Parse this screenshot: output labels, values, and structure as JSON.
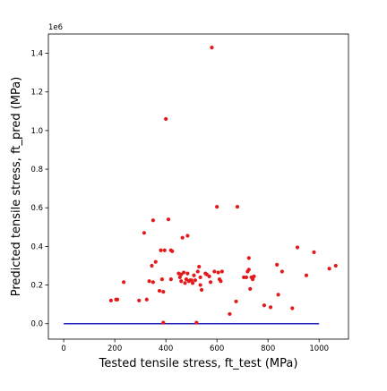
{
  "chart_data": {
    "type": "scatter",
    "title": "",
    "xlabel": "Tested tensile stress, ft_test (MPa)",
    "ylabel": "Predicted tensile stress, ft_pred (MPa)",
    "y_offset_label": "1e6",
    "xlim": [
      -60,
      1115
    ],
    "ylim": [
      -0.08,
      1.5
    ],
    "x_ticks": [
      0,
      200,
      400,
      600,
      800,
      1000
    ],
    "x_tick_labels": [
      "0",
      "200",
      "400",
      "600",
      "800",
      "1000"
    ],
    "y_ticks": [
      0.0,
      0.2,
      0.4,
      0.6,
      0.8,
      1.0,
      1.2,
      1.4
    ],
    "y_tick_labels": [
      "0.0",
      "0.2",
      "0.4",
      "0.6",
      "0.8",
      "1.0",
      "1.2",
      "1.4"
    ],
    "grid": false,
    "colors": {
      "points": "#e31a1c",
      "reference_line": "#1f1fbf",
      "axes": "#000000"
    },
    "series": [
      {
        "kind": "points",
        "x": [
          185,
          205,
          210,
          235,
          295,
          315,
          325,
          335,
          345,
          350,
          350,
          360,
          375,
          380,
          385,
          390,
          390,
          395,
          400,
          410,
          420,
          420,
          425,
          450,
          455,
          460,
          460,
          465,
          470,
          475,
          480,
          485,
          485,
          490,
          495,
          500,
          505,
          510,
          515,
          520,
          525,
          530,
          535,
          535,
          540,
          555,
          560,
          570,
          575,
          580,
          590,
          600,
          605,
          610,
          615,
          620,
          650,
          675,
          680,
          705,
          715,
          720,
          725,
          725,
          730,
          735,
          740,
          745,
          785,
          810,
          835,
          840,
          855,
          895,
          915,
          950,
          980,
          1040,
          1065
        ],
        "y": [
          0.12,
          0.125,
          0.125,
          0.215,
          0.12,
          0.47,
          0.125,
          0.22,
          0.3,
          0.535,
          0.215,
          0.32,
          0.17,
          0.38,
          0.23,
          0.005,
          0.165,
          0.38,
          1.06,
          0.54,
          0.23,
          0.38,
          0.375,
          0.26,
          0.24,
          0.22,
          0.255,
          0.445,
          0.265,
          0.21,
          0.23,
          0.455,
          0.26,
          0.22,
          0.225,
          0.225,
          0.21,
          0.25,
          0.225,
          0.005,
          0.27,
          0.295,
          0.2,
          0.24,
          0.175,
          0.26,
          0.255,
          0.245,
          0.215,
          1.43,
          0.27,
          0.605,
          0.265,
          0.23,
          0.22,
          0.27,
          0.05,
          0.115,
          0.605,
          0.24,
          0.24,
          0.27,
          0.34,
          0.28,
          0.18,
          0.24,
          0.23,
          0.245,
          0.095,
          0.085,
          0.305,
          0.15,
          0.27,
          0.08,
          0.395,
          0.25,
          0.37,
          0.285,
          0.3
        ]
      },
      {
        "kind": "line",
        "x": [
          0,
          1000
        ],
        "y": [
          0,
          0
        ]
      }
    ]
  }
}
